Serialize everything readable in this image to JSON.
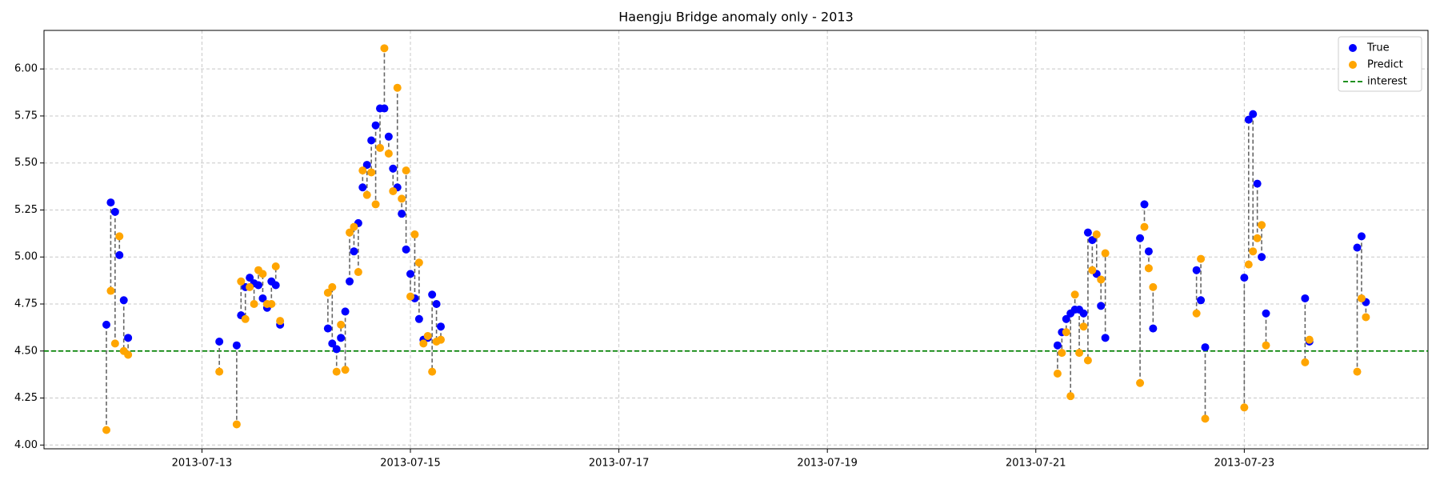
{
  "chart_data": {
    "type": "scatter",
    "title": "Haengju Bridge anomaly only - 2013",
    "x": [
      "2013-07-12T02:00",
      "2013-07-12T03:00",
      "2013-07-12T04:00",
      "2013-07-12T05:00",
      "2013-07-12T06:00",
      "2013-07-12T07:00",
      "2013-07-13T04:00",
      "2013-07-13T08:00",
      "2013-07-13T09:00",
      "2013-07-13T10:00",
      "2013-07-13T11:00",
      "2013-07-13T12:00",
      "2013-07-13T13:00",
      "2013-07-13T14:00",
      "2013-07-13T15:00",
      "2013-07-13T16:00",
      "2013-07-13T17:00",
      "2013-07-13T18:00",
      "2013-07-14T05:00",
      "2013-07-14T06:00",
      "2013-07-14T07:00",
      "2013-07-14T08:00",
      "2013-07-14T09:00",
      "2013-07-14T10:00",
      "2013-07-14T11:00",
      "2013-07-14T12:00",
      "2013-07-14T13:00",
      "2013-07-14T14:00",
      "2013-07-14T15:00",
      "2013-07-14T16:00",
      "2013-07-14T17:00",
      "2013-07-14T18:00",
      "2013-07-14T19:00",
      "2013-07-14T20:00",
      "2013-07-14T21:00",
      "2013-07-14T22:00",
      "2013-07-14T23:00",
      "2013-07-15T00:00",
      "2013-07-15T01:00",
      "2013-07-15T02:00",
      "2013-07-15T03:00",
      "2013-07-15T04:00",
      "2013-07-15T05:00",
      "2013-07-15T06:00",
      "2013-07-15T07:00",
      "2013-07-21T05:00",
      "2013-07-21T06:00",
      "2013-07-21T07:00",
      "2013-07-21T08:00",
      "2013-07-21T09:00",
      "2013-07-21T10:00",
      "2013-07-21T11:00",
      "2013-07-21T12:00",
      "2013-07-21T13:00",
      "2013-07-21T14:00",
      "2013-07-21T15:00",
      "2013-07-21T16:00",
      "2013-07-22T00:00",
      "2013-07-22T01:00",
      "2013-07-22T02:00",
      "2013-07-22T03:00",
      "2013-07-22T13:00",
      "2013-07-22T14:00",
      "2013-07-22T15:00",
      "2013-07-23T00:00",
      "2013-07-23T01:00",
      "2013-07-23T02:00",
      "2013-07-23T03:00",
      "2013-07-23T04:00",
      "2013-07-23T05:00",
      "2013-07-23T14:00",
      "2013-07-23T15:00",
      "2013-07-24T02:00",
      "2013-07-24T03:00",
      "2013-07-24T04:00"
    ],
    "series": [
      {
        "name": "True",
        "color": "#0000ff",
        "values": [
          4.64,
          5.29,
          5.24,
          5.01,
          4.77,
          4.57,
          4.55,
          4.53,
          4.69,
          4.84,
          4.89,
          4.86,
          4.85,
          4.78,
          4.73,
          4.87,
          4.85,
          4.64,
          4.62,
          4.54,
          4.51,
          4.57,
          4.71,
          4.87,
          5.03,
          5.18,
          5.37,
          5.49,
          5.62,
          5.7,
          5.79,
          5.79,
          5.64,
          5.47,
          5.37,
          5.23,
          5.04,
          4.91,
          4.78,
          4.67,
          4.56,
          4.57,
          4.8,
          4.75,
          4.63,
          4.53,
          4.6,
          4.67,
          4.7,
          4.72,
          4.72,
          4.7,
          5.13,
          5.09,
          4.91,
          4.74,
          4.57,
          5.1,
          5.28,
          5.03,
          4.62,
          4.93,
          4.77,
          4.52,
          4.89,
          5.73,
          5.76,
          5.39,
          5.0,
          4.7,
          4.78,
          4.55,
          5.05,
          5.11,
          4.76
        ]
      },
      {
        "name": "Predict",
        "color": "#ffa500",
        "values": [
          4.08,
          4.82,
          4.54,
          5.11,
          4.5,
          4.48,
          4.39,
          4.11,
          4.87,
          4.67,
          4.84,
          4.75,
          4.93,
          4.91,
          4.75,
          4.75,
          4.95,
          4.66,
          4.81,
          4.84,
          4.39,
          4.64,
          4.4,
          5.13,
          5.16,
          4.92,
          5.46,
          5.33,
          5.45,
          5.28,
          5.58,
          6.11,
          5.55,
          5.35,
          5.9,
          5.31,
          5.46,
          4.79,
          5.12,
          4.97,
          4.54,
          4.58,
          4.39,
          4.55,
          4.56,
          4.38,
          4.49,
          4.6,
          4.26,
          4.8,
          4.49,
          4.63,
          4.45,
          4.93,
          5.12,
          4.88,
          5.02,
          4.33,
          5.16,
          4.94,
          4.84,
          4.7,
          4.99,
          4.14,
          4.2,
          4.96,
          5.03,
          5.1,
          5.17,
          4.53,
          4.44,
          4.56,
          4.39,
          4.78,
          4.68
        ]
      }
    ],
    "hline": {
      "name": "interest",
      "value": 4.5,
      "color": "#008000"
    },
    "connector_color": "#666666",
    "xlim": [
      "2013-07-11T11:38",
      "2013-07-24T18:18"
    ],
    "xticks": [
      "2013-07-13",
      "2013-07-15",
      "2013-07-17",
      "2013-07-19",
      "2013-07-21",
      "2013-07-23"
    ],
    "ylim": [
      3.98,
      6.205
    ],
    "yticks": [
      {
        "value": 4,
        "label": "4.00"
      },
      4.25,
      {
        "value": 4.5,
        "label": "4.50"
      },
      4.75,
      {
        "value": 5,
        "label": "5.00"
      },
      5.25,
      {
        "value": 5.5,
        "label": "5.50"
      },
      5.75,
      {
        "value": 6,
        "label": "6.00"
      }
    ],
    "grid": true,
    "legend": "upper right"
  }
}
